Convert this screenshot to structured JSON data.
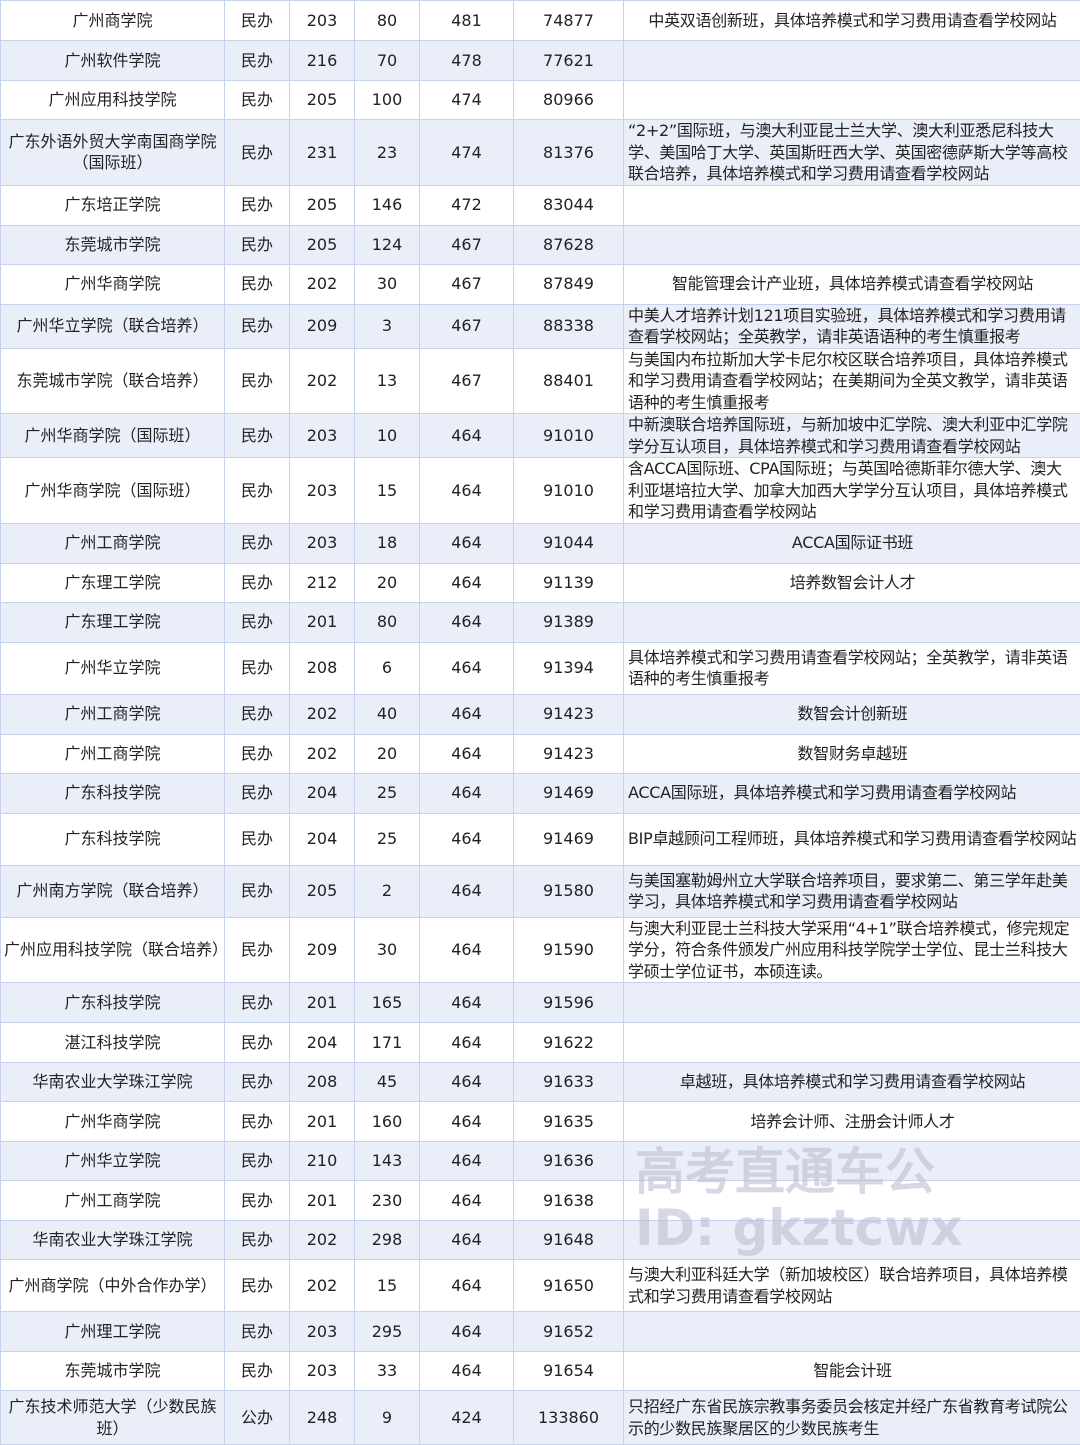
{
  "watermark": {
    "line1": "高考直通车公",
    "line2": "ID: gkztcwx"
  },
  "table": {
    "rows": [
      [
        "广州商学院",
        "民办",
        "203",
        "80",
        "481",
        "74877",
        "中英双语创新班，具体培养模式和学习费用请查看学校网站"
      ],
      [
        "广州软件学院",
        "民办",
        "216",
        "70",
        "478",
        "77621",
        ""
      ],
      [
        "广州应用科技学院",
        "民办",
        "205",
        "100",
        "474",
        "80966",
        ""
      ],
      [
        "广东外语外贸大学南国商学院（国际班）",
        "民办",
        "231",
        "23",
        "474",
        "81376",
        "“2+2”国际班，与澳大利亚昆士兰大学、澳大利亚悉尼科技大学、美国哈丁大学、英国斯旺西大学、英国密德萨斯大学等高校联合培养，具体培养模式和学习费用请查看学校网站"
      ],
      [
        "广东培正学院",
        "民办",
        "205",
        "146",
        "472",
        "83044",
        ""
      ],
      [
        "东莞城市学院",
        "民办",
        "205",
        "124",
        "467",
        "87628",
        ""
      ],
      [
        "广州华商学院",
        "民办",
        "202",
        "30",
        "467",
        "87849",
        "智能管理会计产业班，具体培养模式请查看学校网站"
      ],
      [
        "广州华立学院（联合培养）",
        "民办",
        "209",
        "3",
        "467",
        "88338",
        "中美人才培养计划121项目实验班，具体培养模式和学习费用请查看学校网站；全英教学，请非英语语种的考生慎重报考"
      ],
      [
        "东莞城市学院（联合培养）",
        "民办",
        "202",
        "13",
        "467",
        "88401",
        "与美国内布拉斯加大学卡尼尔校区联合培养项目，具体培养模式和学习费用请查看学校网站；在美期间为全英文教学，请非英语语种的考生慎重报考"
      ],
      [
        "广州华商学院（国际班）",
        "民办",
        "203",
        "10",
        "464",
        "91010",
        "中新澳联合培养国际班，与新加坡中汇学院、澳大利亚中汇学院学分互认项目，具体培养模式和学习费用请查看学校网站"
      ],
      [
        "广州华商学院（国际班）",
        "民办",
        "203",
        "15",
        "464",
        "91010",
        "含ACCA国际班、CPA国际班；与英国哈德斯菲尔德大学、澳大利亚堪培拉大学、加拿大加西大学学分互认项目，具体培养模式和学习费用请查看学校网站"
      ],
      [
        "广州工商学院",
        "民办",
        "203",
        "18",
        "464",
        "91044",
        "ACCA国际证书班"
      ],
      [
        "广东理工学院",
        "民办",
        "212",
        "20",
        "464",
        "91139",
        "培养数智会计人才"
      ],
      [
        "广东理工学院",
        "民办",
        "201",
        "80",
        "464",
        "91389",
        ""
      ],
      [
        "广州华立学院",
        "民办",
        "208",
        "6",
        "464",
        "91394",
        "具体培养模式和学习费用请查看学校网站；全英教学，请非英语语种的考生慎重报考"
      ],
      [
        "广州工商学院",
        "民办",
        "202",
        "40",
        "464",
        "91423",
        "数智会计创新班"
      ],
      [
        "广州工商学院",
        "民办",
        "202",
        "20",
        "464",
        "91423",
        "数智财务卓越班"
      ],
      [
        "广东科技学院",
        "民办",
        "204",
        "25",
        "464",
        "91469",
        "ACCA国际班，具体培养模式和学习费用请查看学校网站"
      ],
      [
        "广东科技学院",
        "民办",
        "204",
        "25",
        "464",
        "91469",
        "BIP卓越顾问工程师班，具体培养模式和学习费用请查看学校网站"
      ],
      [
        "广州南方学院（联合培养）",
        "民办",
        "205",
        "2",
        "464",
        "91580",
        "与美国塞勒姆州立大学联合培养项目，要求第二、第三学年赴美学习，具体培养模式和学习费用请查看学校网站"
      ],
      [
        "广州应用科技学院（联合培养）",
        "民办",
        "209",
        "30",
        "464",
        "91590",
        "与澳大利亚昆士兰科技大学采用“4+1”联合培养模式，修完规定学分，符合条件颁发广州应用科技学院学士学位、昆士兰科技大学硕士学位证书，本硕连读。"
      ],
      [
        "广东科技学院",
        "民办",
        "201",
        "165",
        "464",
        "91596",
        ""
      ],
      [
        "湛江科技学院",
        "民办",
        "204",
        "171",
        "464",
        "91622",
        ""
      ],
      [
        "华南农业大学珠江学院",
        "民办",
        "208",
        "45",
        "464",
        "91633",
        "卓越班，具体培养模式和学习费用请查看学校网站"
      ],
      [
        "广州华商学院",
        "民办",
        "201",
        "160",
        "464",
        "91635",
        "培养会计师、注册会计师人才"
      ],
      [
        "广州华立学院",
        "民办",
        "210",
        "143",
        "464",
        "91636",
        ""
      ],
      [
        "广州工商学院",
        "民办",
        "201",
        "230",
        "464",
        "91638",
        ""
      ],
      [
        "华南农业大学珠江学院",
        "民办",
        "202",
        "298",
        "464",
        "91648",
        ""
      ],
      [
        "广州商学院（中外合作办学）",
        "民办",
        "202",
        "15",
        "464",
        "91650",
        "与澳大利亚科廷大学（新加坡校区）联合培养项目，具体培养模式和学习费用请查看学校网站"
      ],
      [
        "广州理工学院",
        "民办",
        "203",
        "295",
        "464",
        "91652",
        ""
      ],
      [
        "东莞城市学院",
        "民办",
        "203",
        "33",
        "464",
        "91654",
        "智能会计班"
      ],
      [
        "广东技术师范大学（少数民族班）",
        "公办",
        "248",
        "9",
        "424",
        "133860",
        "只招经广东省民族宗教事务委员会核定并经广东省教育考试院公示的少数民族聚居区的少数民族考生"
      ]
    ]
  }
}
